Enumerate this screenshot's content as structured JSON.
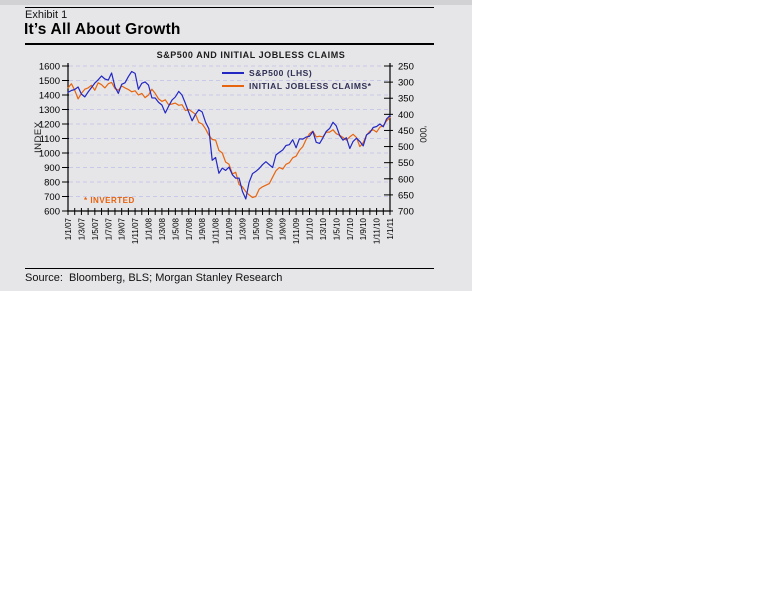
{
  "exhibit": {
    "label": "Exhibit 1",
    "title": "It’s All About Growth"
  },
  "source_line": "Source:  Bloomberg, BLS; Morgan Stanley Research",
  "colors": {
    "panel_bg": "#e6e6e8",
    "top_strip": "#d2d2d4",
    "gridline": "#c8c8e8",
    "axis": "#000000",
    "sp500_line": "#2328c3",
    "claims_line": "#e8650f",
    "legend_text": "#2f2f55",
    "footnote_text": "#e8610c"
  },
  "chart_data": {
    "type": "line",
    "title": "S&P500 AND INITIAL JOBLESS CLAIMS",
    "footnote": "* INVERTED",
    "legend_position": "top-right-inside",
    "grid": {
      "horizontal_dashed": true,
      "vertical": false
    },
    "left_axis": {
      "label": "INDEX",
      "min": 600,
      "max": 1600,
      "step": 100,
      "inverted": false
    },
    "right_axis": {
      "label": "'000",
      "min": 250,
      "max": 700,
      "step": 50,
      "inverted": true
    },
    "x_axis": {
      "months_total": 48,
      "minor_tick_every_months": 1,
      "label_every_months": 2,
      "labels": [
        "1/1/07",
        "1/3/07",
        "1/5/07",
        "1/7/07",
        "1/9/07",
        "1/11/07",
        "1/1/08",
        "1/3/08",
        "1/5/08",
        "1/7/08",
        "1/9/08",
        "1/11/08",
        "1/1/09",
        "1/3/09",
        "1/5/09",
        "1/7/09",
        "1/9/09",
        "1/11/09",
        "1/1/10",
        "1/3/10",
        "1/5/10",
        "1/7/10",
        "1/9/10",
        "1/11/10",
        "1/1/11"
      ]
    },
    "series": [
      {
        "name": "S&P500 (LHS)",
        "axis": "left",
        "color": "#2328c3",
        "x_start_month": 0,
        "x_step_months": 0.5,
        "values": [
          1418,
          1431,
          1438,
          1455,
          1406,
          1387,
          1421,
          1452,
          1482,
          1505,
          1531,
          1510,
          1503,
          1552,
          1455,
          1411,
          1474,
          1484,
          1527,
          1562,
          1549,
          1439,
          1481,
          1490,
          1468,
          1380,
          1379,
          1349,
          1331,
          1276,
          1323,
          1365,
          1386,
          1425,
          1400,
          1342,
          1280,
          1222,
          1267,
          1298,
          1283,
          1213,
          1166,
          950,
          969,
          860,
          896,
          880,
          903,
          850,
          826,
          827,
          735,
          683,
          798,
          858,
          873,
          893,
          919,
          940,
          919,
          900,
          987,
          1004,
          1021,
          1052,
          1057,
          1092,
          1036,
          1098,
          1096,
          1110,
          1115,
          1148,
          1074,
          1066,
          1104,
          1150,
          1169,
          1212,
          1187,
          1120,
          1089,
          1105,
          1031,
          1080,
          1102,
          1080,
          1049,
          1125,
          1141,
          1176,
          1183,
          1200,
          1181,
          1235,
          1258
        ]
      },
      {
        "name": "INITIAL JOBLESS CLAIMS*",
        "axis": "right",
        "color": "#e8650f",
        "x_start_month": 0,
        "x_step_months": 0.5,
        "values": [
          318,
          305,
          325,
          352,
          335,
          322,
          318,
          310,
          325,
          302,
          308,
          318,
          305,
          301,
          320,
          325,
          312,
          318,
          323,
          330,
          327,
          340,
          335,
          348,
          340,
          322,
          335,
          352,
          360,
          355,
          370,
          368,
          365,
          372,
          370,
          388,
          385,
          392,
          400,
          425,
          430,
          445,
          465,
          478,
          480,
          512,
          520,
          548,
          555,
          585,
          580,
          618,
          625,
          640,
          650,
          658,
          655,
          632,
          625,
          620,
          615,
          595,
          575,
          565,
          570,
          555,
          550,
          535,
          530,
          512,
          500,
          478,
          460,
          452,
          470,
          468,
          470,
          455,
          455,
          448,
          460,
          465,
          472,
          480,
          470,
          462,
          472,
          500,
          488,
          465,
          452,
          448,
          455,
          440,
          435,
          420,
          410
        ]
      }
    ]
  }
}
